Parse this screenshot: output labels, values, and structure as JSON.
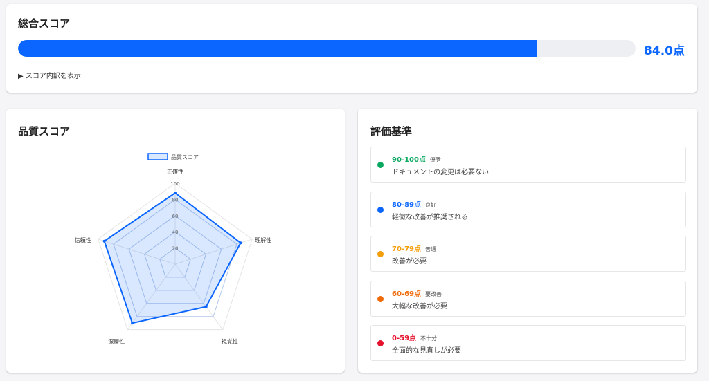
{
  "total": {
    "title": "総合スコア",
    "score_label": "84.0点",
    "progress_percent": 84,
    "toggle_label": "▶ スコア内訳を表示",
    "accent": "#0a66ff"
  },
  "quality": {
    "title": "品質スコア"
  },
  "chart_data": {
    "type": "radar",
    "legend": "品質スコア",
    "legend_position": "top",
    "axes": [
      "正確性",
      "理解性",
      "視覚性",
      "深層性",
      "信頼性"
    ],
    "values": [
      88,
      85,
      65,
      90,
      92
    ],
    "rlim": [
      0,
      100
    ],
    "ticks": [
      "20",
      "40",
      "60",
      "80",
      "100"
    ],
    "color": "#0a66ff"
  },
  "criteria": {
    "title": "評価基準",
    "items": [
      {
        "range": "90-100点",
        "level": "優秀",
        "desc": "ドキュメントの変更は必要ない",
        "color": "#0aa860"
      },
      {
        "range": "80-89点",
        "level": "良好",
        "desc": "軽微な改善が推奨される",
        "color": "#0a66ff"
      },
      {
        "range": "70-79点",
        "level": "普通",
        "desc": "改善が必要",
        "color": "#f59e0b"
      },
      {
        "range": "60-69点",
        "level": "要改善",
        "desc": "大幅な改善が必要",
        "color": "#f06a0a"
      },
      {
        "range": "0-59点",
        "level": "不十分",
        "desc": "全面的な見直しが必要",
        "color": "#e5132e"
      }
    ]
  }
}
